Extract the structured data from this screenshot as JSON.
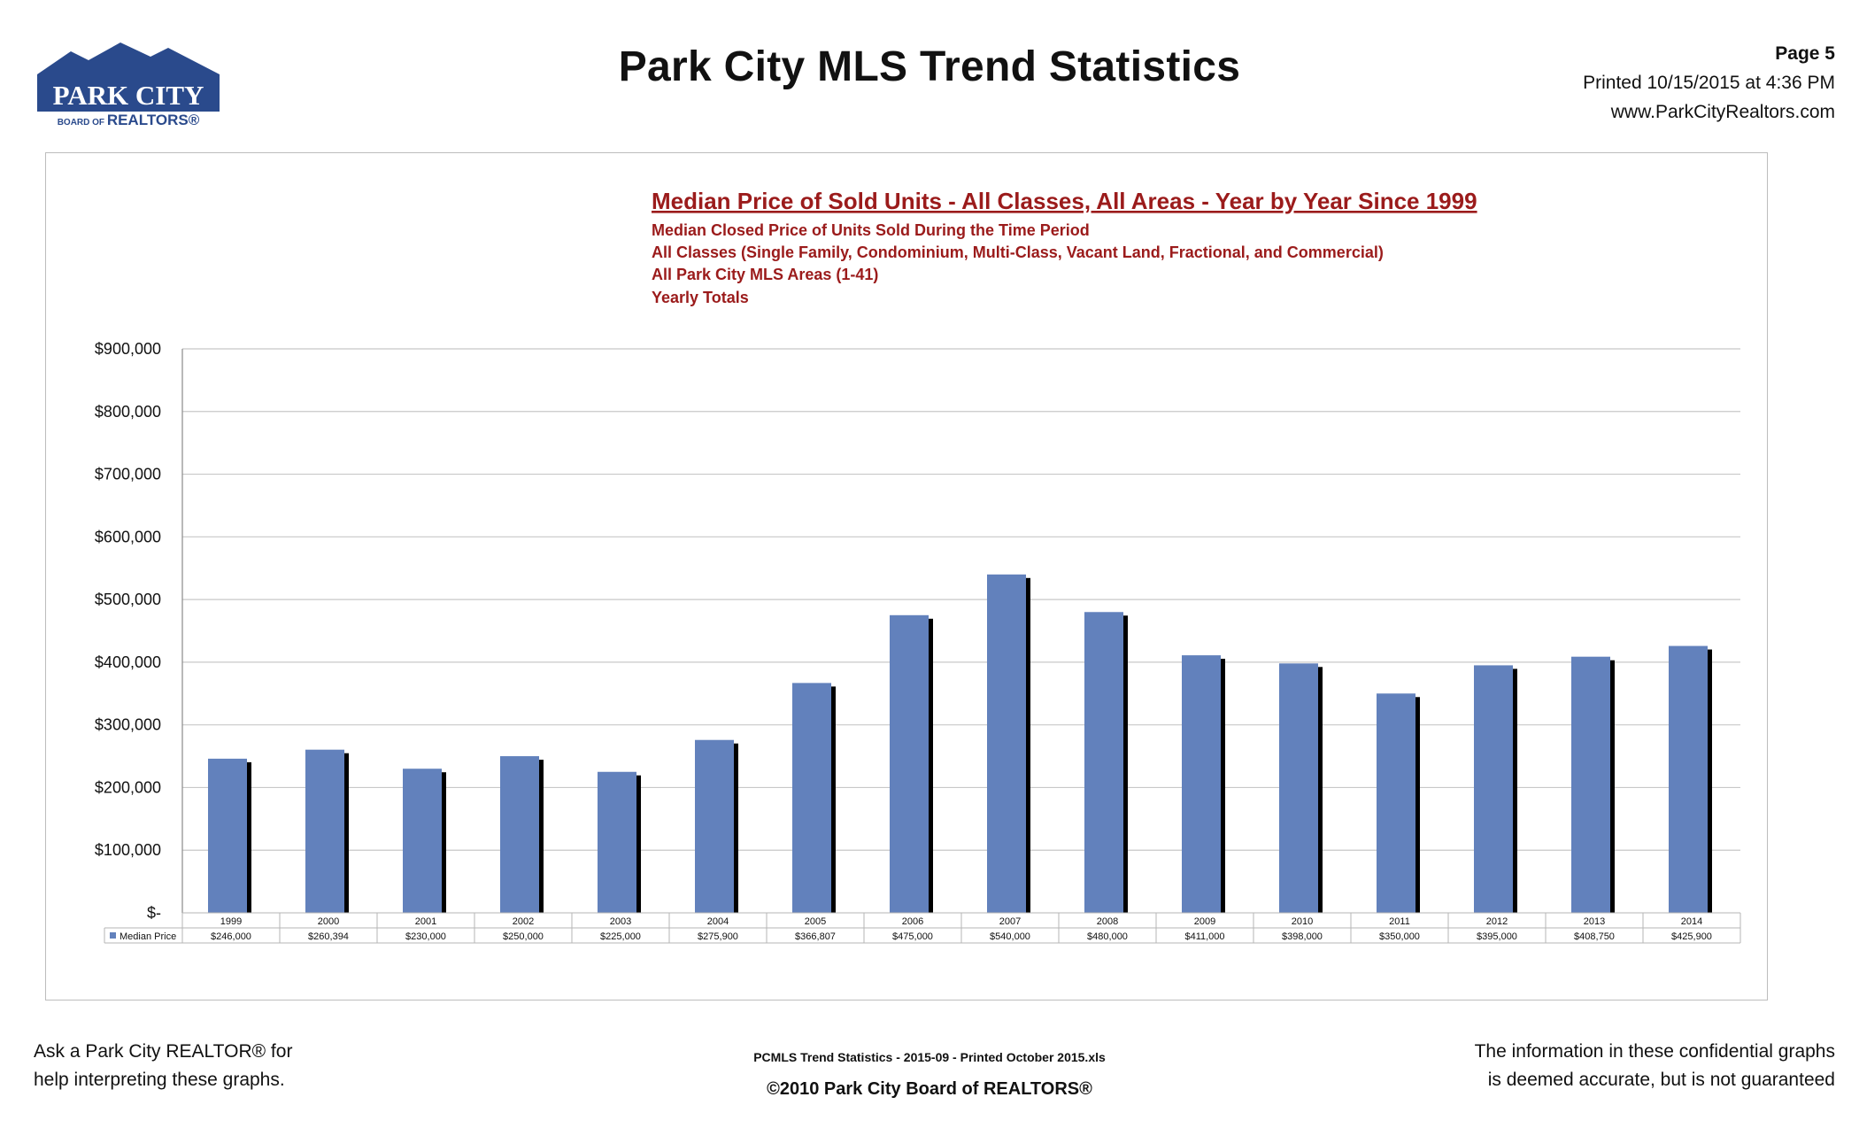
{
  "header": {
    "logo_line1": "PARK CITY",
    "logo_line2a": "BOARD OF ",
    "logo_line2b": "REALTORS®",
    "title": "Park City MLS Trend Statistics",
    "page": "Page 5",
    "printed": "Printed  10/15/2015  at  4:36 PM",
    "website": "www.ParkCityRealtors.com"
  },
  "colors": {
    "bar": "#6281bc",
    "bar_shadow": "#000000",
    "heading": "#9b1b1b",
    "grid": "#c8c8c8",
    "logo_blue": "#2a4a8c"
  },
  "chart_data": {
    "type": "bar",
    "title": "Median Price of Sold Units - All Classes, All Areas - Year by Year Since 1999",
    "subtitles": [
      "Median Closed Price of Units Sold During the Time Period",
      "All Classes  (Single Family, Condominium, Multi-Class, Vacant Land, Fractional, and Commercial)",
      "All Park City MLS Areas (1-41)",
      "Yearly Totals"
    ],
    "categories": [
      "1999",
      "2000",
      "2001",
      "2002",
      "2003",
      "2004",
      "2005",
      "2006",
      "2007",
      "2008",
      "2009",
      "2010",
      "2011",
      "2012",
      "2013",
      "2014"
    ],
    "series": [
      {
        "name": "Median Price",
        "values": [
          246000,
          260394,
          230000,
          250000,
          225000,
          275900,
          366807,
          475000,
          540000,
          480000,
          411000,
          398000,
          350000,
          395000,
          408750,
          425900
        ],
        "labels": [
          "$246,000",
          "$260,394",
          "$230,000",
          "$250,000",
          "$225,000",
          "$275,900",
          "$366,807",
          "$475,000",
          "$540,000",
          "$480,000",
          "$411,000",
          "$398,000",
          "$350,000",
          "$395,000",
          "$408,750",
          "$425,900"
        ]
      }
    ],
    "ylim": [
      0,
      900000
    ],
    "yticks": [
      0,
      100000,
      200000,
      300000,
      400000,
      500000,
      600000,
      700000,
      800000,
      900000
    ],
    "ytick_labels": [
      "$-",
      "$100,000",
      "$200,000",
      "$300,000",
      "$400,000",
      "$500,000",
      "$600,000",
      "$700,000",
      "$800,000",
      "$900,000"
    ],
    "grid": true,
    "legend": "data-table"
  },
  "footer": {
    "left_line1": "Ask a Park City REALTOR® for",
    "left_line2": "help interpreting these graphs.",
    "center_line1": "PCMLS Trend Statistics  - 2015-09  - Printed October 2015.xls",
    "center_line2": "©2010  Park City Board of REALTORS®",
    "right_line1": "The information in these confidential graphs",
    "right_line2": "is deemed accurate, but is not guaranteed"
  }
}
